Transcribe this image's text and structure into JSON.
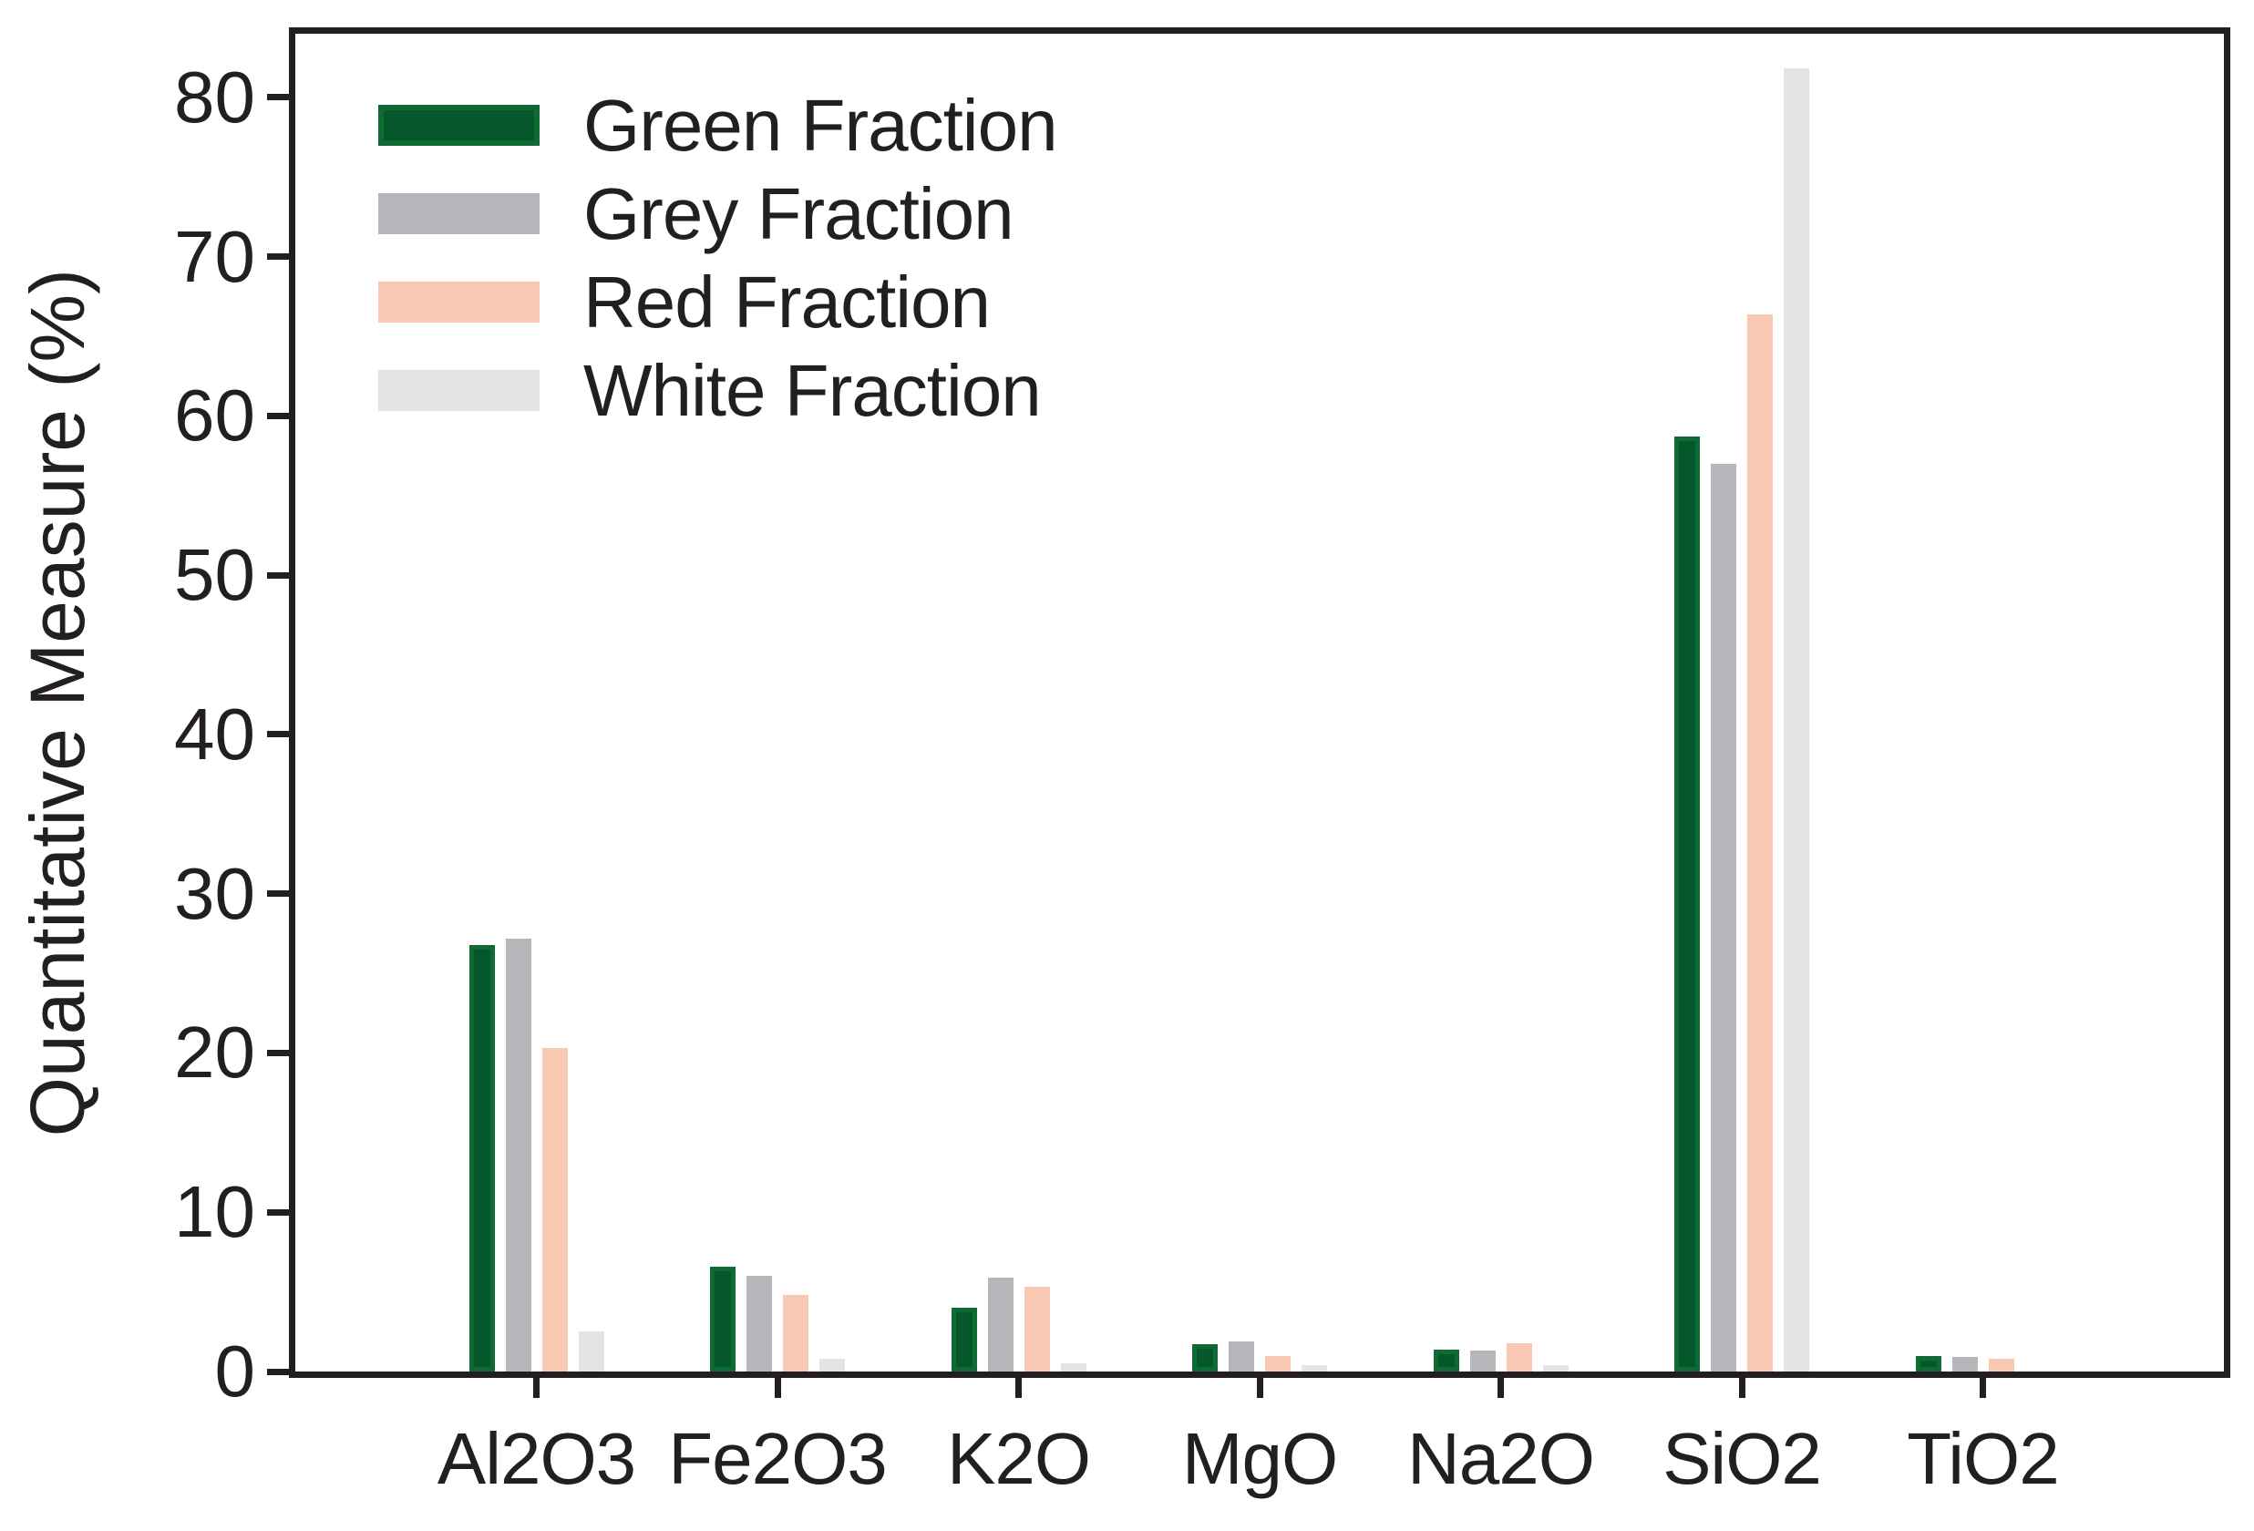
{
  "figure": {
    "background": "#ffffff",
    "spine_color": "#231f20",
    "text_color": "#231f20"
  },
  "chart_data": {
    "type": "bar",
    "title": "",
    "xlabel": "",
    "ylabel": "Quantitative Measure (%)",
    "categories": [
      "Al2O3",
      "Fe2O3",
      "K2O",
      "MgO",
      "Na2O",
      "SiO2",
      "TiO2"
    ],
    "series": [
      {
        "name": "Green Fraction",
        "color": "#06572b",
        "edge_color": "#0e6b33",
        "values": [
          26.8,
          6.6,
          4.0,
          1.7,
          1.4,
          58.7,
          1.0
        ]
      },
      {
        "name": "Grey Fraction",
        "color": "#b5b6ba",
        "values": [
          27.2,
          6.0,
          5.9,
          1.9,
          1.3,
          57.0,
          0.9
        ]
      },
      {
        "name": "Red Fraction",
        "color": "#f9c8b2",
        "values": [
          20.3,
          4.8,
          5.3,
          1.0,
          1.8,
          66.4,
          0.8
        ]
      },
      {
        "name": "White Fraction",
        "color": "#e3e4e6",
        "values": [
          2.5,
          0.8,
          0.5,
          0.4,
          0.4,
          81.8,
          0.0
        ]
      }
    ],
    "ylim": [
      0,
      84
    ],
    "yticks": [
      0,
      10,
      20,
      30,
      40,
      50,
      60,
      70,
      80
    ],
    "grid": false,
    "legend_position": "upper left"
  }
}
